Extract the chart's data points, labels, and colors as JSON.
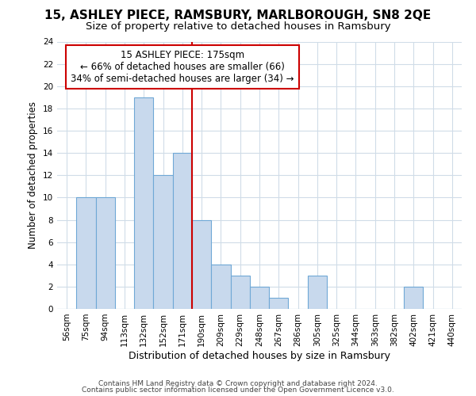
{
  "title": "15, ASHLEY PIECE, RAMSBURY, MARLBOROUGH, SN8 2QE",
  "subtitle": "Size of property relative to detached houses in Ramsbury",
  "xlabel": "Distribution of detached houses by size in Ramsbury",
  "ylabel": "Number of detached properties",
  "bin_labels": [
    "56sqm",
    "75sqm",
    "94sqm",
    "113sqm",
    "132sqm",
    "152sqm",
    "171sqm",
    "190sqm",
    "209sqm",
    "229sqm",
    "248sqm",
    "267sqm",
    "286sqm",
    "305sqm",
    "325sqm",
    "344sqm",
    "363sqm",
    "382sqm",
    "402sqm",
    "421sqm",
    "440sqm"
  ],
  "bar_values": [
    0,
    10,
    10,
    0,
    19,
    12,
    14,
    8,
    4,
    3,
    2,
    1,
    0,
    3,
    0,
    0,
    0,
    0,
    2,
    0,
    0
  ],
  "bar_color": "#c8d9ed",
  "bar_edgecolor": "#6fa8d6",
  "grid_color": "#d0dce8",
  "vline_x_index": 6,
  "vline_color": "#cc0000",
  "annotation_line1": "15 ASHLEY PIECE: 175sqm",
  "annotation_line2": "← 66% of detached houses are smaller (66)",
  "annotation_line3": "34% of semi-detached houses are larger (34) →",
  "annotation_box_color": "#ffffff",
  "annotation_box_edgecolor": "#cc0000",
  "ylim": [
    0,
    24
  ],
  "yticks": [
    0,
    2,
    4,
    6,
    8,
    10,
    12,
    14,
    16,
    18,
    20,
    22,
    24
  ],
  "footer1": "Contains HM Land Registry data © Crown copyright and database right 2024.",
  "footer2": "Contains public sector information licensed under the Open Government Licence v3.0.",
  "title_fontsize": 11,
  "subtitle_fontsize": 9.5,
  "xlabel_fontsize": 9,
  "ylabel_fontsize": 8.5,
  "tick_fontsize": 7.5,
  "annotation_fontsize": 8.5,
  "footer_fontsize": 6.5
}
